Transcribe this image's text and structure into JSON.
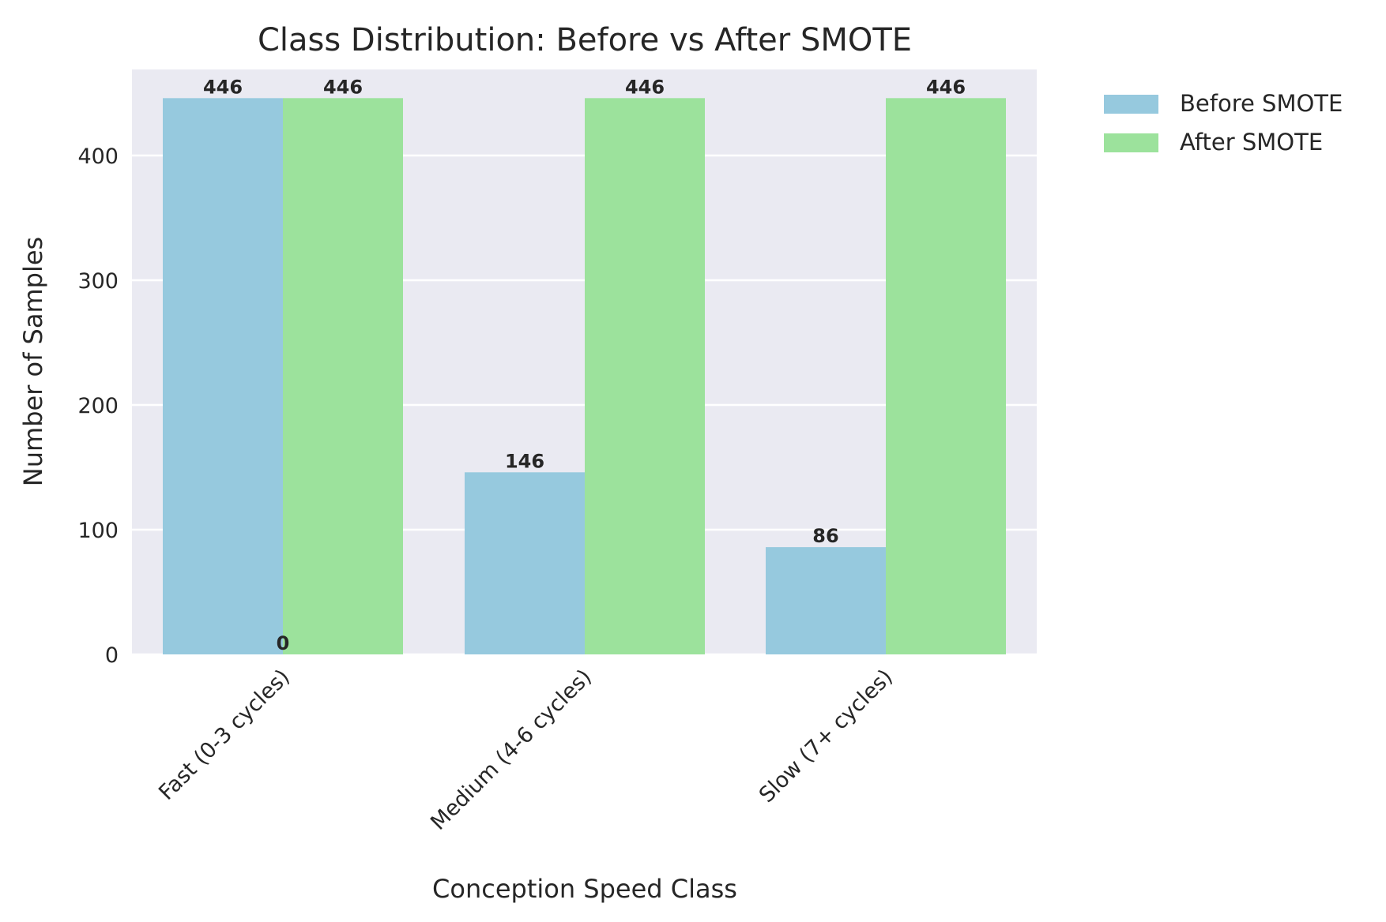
{
  "chart_data": {
    "type": "bar",
    "title": "Class Distribution: Before vs After SMOTE",
    "xlabel": "Conception Speed Class",
    "ylabel": "Number of Samples",
    "categories": [
      "Fast (0-3 cycles)",
      "Medium (4-6 cycles)",
      "Slow (7+ cycles)"
    ],
    "series": [
      {
        "name": "Before SMOTE",
        "values": [
          446,
          146,
          86
        ],
        "color": "#96c9de"
      },
      {
        "name": "After SMOTE",
        "values": [
          446,
          446,
          446
        ],
        "color": "#9ce29c"
      }
    ],
    "annotations": [
      {
        "text": "0",
        "x": 0,
        "y": 0
      }
    ],
    "yticks": [
      0,
      100,
      200,
      300,
      400
    ],
    "ylim": [
      0,
      475
    ],
    "grid": "y",
    "legend": "outside-top-right",
    "background": "#eaeaf2"
  }
}
